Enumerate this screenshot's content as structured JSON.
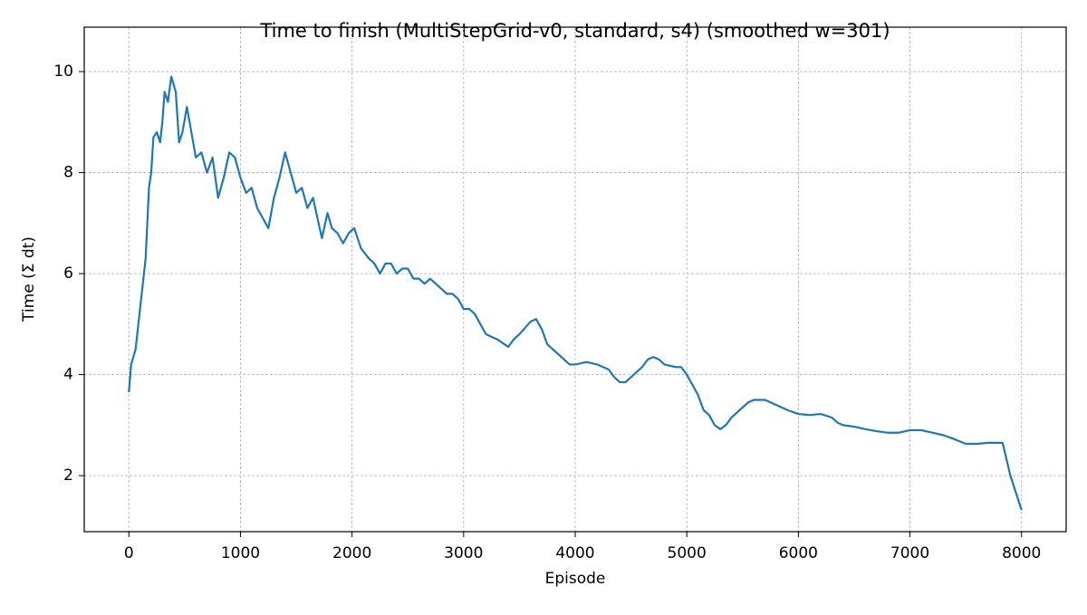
{
  "chart_data": {
    "type": "line",
    "title": "Time to finish (MultiStepGrid-v0, standard, s4) (smoothed w=301)",
    "x_label": "Episode",
    "y_label": "Time (Σ dt)",
    "color": "#1f77b4",
    "grid": true,
    "xlim": [
      -400,
      8400
    ],
    "ylim": [
      0.89,
      10.88
    ],
    "xticks": [
      0,
      1000,
      2000,
      3000,
      4000,
      5000,
      6000,
      7000,
      8000
    ],
    "yticks": [
      2,
      4,
      6,
      8,
      10
    ],
    "x": [
      0,
      20,
      60,
      100,
      150,
      180,
      200,
      220,
      250,
      280,
      300,
      320,
      350,
      380,
      420,
      450,
      480,
      520,
      560,
      600,
      650,
      700,
      750,
      800,
      850,
      900,
      950,
      1000,
      1050,
      1100,
      1150,
      1200,
      1250,
      1300,
      1350,
      1400,
      1450,
      1500,
      1550,
      1600,
      1650,
      1700,
      1730,
      1780,
      1820,
      1870,
      1920,
      1970,
      2020,
      2080,
      2150,
      2200,
      2250,
      2300,
      2350,
      2400,
      2450,
      2500,
      2550,
      2600,
      2650,
      2700,
      2750,
      2800,
      2850,
      2900,
      2950,
      3000,
      3050,
      3100,
      3150,
      3200,
      3300,
      3400,
      3450,
      3500,
      3600,
      3650,
      3700,
      3750,
      3800,
      3850,
      3900,
      3950,
      4000,
      4100,
      4200,
      4300,
      4350,
      4400,
      4450,
      4500,
      4550,
      4600,
      4650,
      4700,
      4750,
      4800,
      4900,
      4950,
      5000,
      5050,
      5100,
      5150,
      5200,
      5250,
      5300,
      5350,
      5400,
      5450,
      5500,
      5550,
      5600,
      5700,
      5750,
      5800,
      5900,
      6000,
      6100,
      6200,
      6300,
      6350,
      6400,
      6500,
      6600,
      6700,
      6800,
      6900,
      7000,
      7100,
      7200,
      7300,
      7400,
      7500,
      7600,
      7700,
      7750,
      7800,
      7830,
      7900,
      8000
    ],
    "values": [
      3.65,
      4.2,
      4.5,
      5.3,
      6.3,
      7.7,
      8.0,
      8.7,
      8.8,
      8.6,
      9.0,
      9.6,
      9.4,
      9.9,
      9.6,
      8.6,
      8.8,
      9.3,
      8.8,
      8.3,
      8.4,
      8.0,
      8.3,
      7.5,
      7.9,
      8.4,
      8.3,
      7.9,
      7.6,
      7.7,
      7.3,
      7.1,
      6.9,
      7.5,
      7.9,
      8.4,
      8.0,
      7.6,
      7.7,
      7.3,
      7.5,
      7.0,
      6.7,
      7.2,
      6.9,
      6.8,
      6.6,
      6.8,
      6.9,
      6.5,
      6.3,
      6.2,
      6.0,
      6.2,
      6.2,
      6.0,
      6.1,
      6.1,
      5.9,
      5.9,
      5.8,
      5.9,
      5.8,
      5.7,
      5.6,
      5.6,
      5.5,
      5.3,
      5.3,
      5.2,
      5.0,
      4.8,
      4.7,
      4.55,
      4.7,
      4.8,
      5.05,
      5.1,
      4.9,
      4.6,
      4.5,
      4.4,
      4.3,
      4.2,
      4.2,
      4.25,
      4.2,
      4.1,
      3.95,
      3.85,
      3.85,
      3.95,
      4.05,
      4.15,
      4.3,
      4.35,
      4.3,
      4.2,
      4.15,
      4.15,
      4.0,
      3.8,
      3.6,
      3.3,
      3.2,
      3.0,
      2.92,
      3.0,
      3.15,
      3.25,
      3.35,
      3.45,
      3.5,
      3.5,
      3.45,
      3.4,
      3.3,
      3.22,
      3.2,
      3.22,
      3.15,
      3.05,
      3.0,
      2.97,
      2.92,
      2.88,
      2.85,
      2.85,
      2.9,
      2.9,
      2.85,
      2.8,
      2.72,
      2.63,
      2.63,
      2.65,
      2.65,
      2.65,
      2.65,
      2.0,
      1.32
    ]
  }
}
